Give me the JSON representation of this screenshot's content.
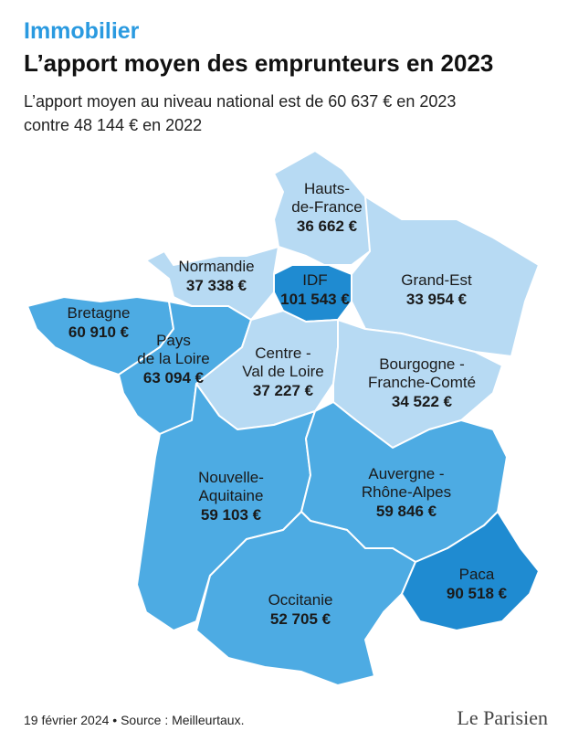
{
  "header": {
    "kicker": "Immobilier",
    "title": "L’apport moyen des emprunteurs en 2023",
    "subtitle_lines": [
      "L’apport moyen au niveau national est de 60 637 € en 2023",
      "contre 48 144 € en 2022"
    ]
  },
  "regions": [
    {
      "name_lines": [
        "Hauts-",
        "de-France"
      ],
      "value": "36 662 €",
      "color": "#b7daf3"
    },
    {
      "name_lines": [
        "IDF"
      ],
      "value": "101 543 €",
      "color": "#1f8bd1"
    },
    {
      "name_lines": [
        "Normandie"
      ],
      "value": "37 338 €",
      "color": "#b7daf3"
    },
    {
      "name_lines": [
        "Grand-Est"
      ],
      "value": "33 954 €",
      "color": "#b7daf3"
    },
    {
      "name_lines": [
        "Bretagne"
      ],
      "value": "60 910 €",
      "color": "#4dabe3"
    },
    {
      "name_lines": [
        "Pays",
        "de la Loire"
      ],
      "value": "63 094 €",
      "color": "#4dabe3"
    },
    {
      "name_lines": [
        "Centre -",
        "Val de Loire"
      ],
      "value": "37 227 €",
      "color": "#b7daf3"
    },
    {
      "name_lines": [
        "Bourgogne -",
        "Franche-Comté"
      ],
      "value": "34 522 €",
      "color": "#b7daf3"
    },
    {
      "name_lines": [
        "Nouvelle-",
        "Aquitaine"
      ],
      "value": "59 103 €",
      "color": "#4dabe3"
    },
    {
      "name_lines": [
        "Auvergne -",
        "Rhône-Alpes"
      ],
      "value": "59 846 €",
      "color": "#4dabe3"
    },
    {
      "name_lines": [
        "Occitanie"
      ],
      "value": "52 705 €",
      "color": "#4dabe3"
    },
    {
      "name_lines": [
        "Paca"
      ],
      "value": "90 518 €",
      "color": "#1f8bd1"
    }
  ],
  "footer": {
    "source": "19 février 2024 • Source : Meilleurtaux.",
    "logo": "Le Parisien"
  }
}
